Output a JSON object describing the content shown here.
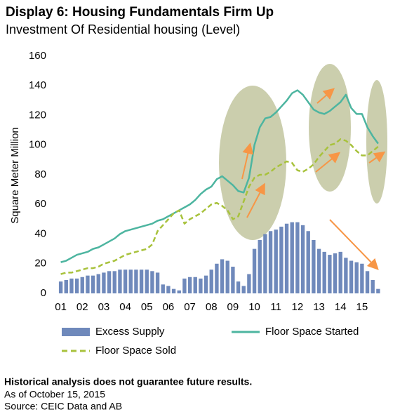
{
  "chart_data": {
    "type": "combo",
    "title": "Display 6: Housing Fundamentals Firm Up",
    "subtitle": "Investment Of Residential housing (Level)",
    "y_label": "Square Meter Million",
    "x": [
      1,
      1.25,
      1.5,
      1.75,
      2,
      2.25,
      2.5,
      2.75,
      3,
      3.25,
      3.5,
      3.75,
      4,
      4.25,
      4.5,
      4.75,
      5,
      5.25,
      5.5,
      5.75,
      6,
      6.25,
      6.5,
      6.75,
      7,
      7.25,
      7.5,
      7.75,
      8,
      8.25,
      8.5,
      8.75,
      9,
      9.25,
      9.5,
      9.75,
      10,
      10.25,
      10.5,
      10.75,
      11,
      11.25,
      11.5,
      11.75,
      12,
      12.25,
      12.5,
      12.75,
      13,
      13.25,
      13.5,
      13.75,
      14,
      14.25,
      14.5,
      14.75,
      15,
      15.25,
      15.5,
      15.75
    ],
    "series": [
      {
        "name": "Excess Supply",
        "kind": "bar",
        "color": "#6f89bb",
        "values": [
          8,
          9,
          10,
          10,
          11,
          12,
          12,
          13,
          14,
          15,
          15,
          16,
          16,
          16,
          16,
          16,
          16,
          15,
          14,
          6,
          5,
          3,
          2,
          10,
          11,
          11,
          10,
          12,
          16,
          20,
          23,
          22,
          18,
          8,
          5,
          13,
          30,
          36,
          40,
          42,
          43,
          45,
          47,
          48,
          48,
          46,
          42,
          36,
          30,
          28,
          26,
          27,
          28,
          24,
          22,
          21,
          20,
          15,
          9,
          3
        ]
      },
      {
        "name": "Floor Space Started",
        "kind": "line",
        "color": "#4db5a0",
        "values": [
          21,
          22,
          24,
          26,
          27,
          28,
          30,
          31,
          33,
          35,
          37,
          40,
          42,
          43,
          44,
          45,
          46,
          47,
          49,
          50,
          52,
          54,
          56,
          58,
          60,
          63,
          67,
          70,
          72,
          77,
          79,
          76,
          73,
          69,
          68,
          78,
          100,
          112,
          118,
          119,
          122,
          126,
          130,
          135,
          137,
          134,
          129,
          124,
          122,
          121,
          123,
          126,
          129,
          134,
          125,
          121,
          121,
          112,
          106,
          101
        ]
      },
      {
        "name": "Floor Space Sold",
        "kind": "dashed",
        "color": "#a8c23c",
        "values": [
          13,
          14,
          14,
          15,
          16,
          17,
          17,
          18,
          20,
          21,
          22,
          24,
          26,
          27,
          28,
          29,
          30,
          33,
          42,
          46,
          50,
          54,
          56,
          47,
          50,
          52,
          54,
          57,
          60,
          61,
          59,
          56,
          50,
          52,
          62,
          72,
          78,
          80,
          80,
          82,
          85,
          87,
          89,
          88,
          83,
          82,
          84,
          87,
          92,
          96,
          100,
          101,
          104,
          103,
          100,
          96,
          93,
          93,
          96,
          99
        ]
      }
    ],
    "xlim": [
      0.85,
      15.95
    ],
    "xticks": [
      {
        "value": 1,
        "label": "01"
      },
      {
        "value": 2,
        "label": "02"
      },
      {
        "value": 3,
        "label": "03"
      },
      {
        "value": 4,
        "label": "04"
      },
      {
        "value": 5,
        "label": "05"
      },
      {
        "value": 6,
        "label": "06"
      },
      {
        "value": 7,
        "label": "07"
      },
      {
        "value": 8,
        "label": "08"
      },
      {
        "value": 9,
        "label": "09"
      },
      {
        "value": 10,
        "label": "10"
      },
      {
        "value": 11,
        "label": "11"
      },
      {
        "value": 12,
        "label": "12"
      },
      {
        "value": 13,
        "label": "13"
      },
      {
        "value": 14,
        "label": "14"
      },
      {
        "value": 15,
        "label": "15"
      }
    ],
    "ylim": [
      0,
      160
    ],
    "yticks": [
      0,
      20,
      40,
      60,
      80,
      100,
      120,
      140,
      160
    ],
    "grid": false,
    "legend": "bottom",
    "notes": [
      "Historical analysis does not guarantee future results.",
      "As of October 15, 2015",
      "Source: CEIC Data and AB"
    ]
  }
}
